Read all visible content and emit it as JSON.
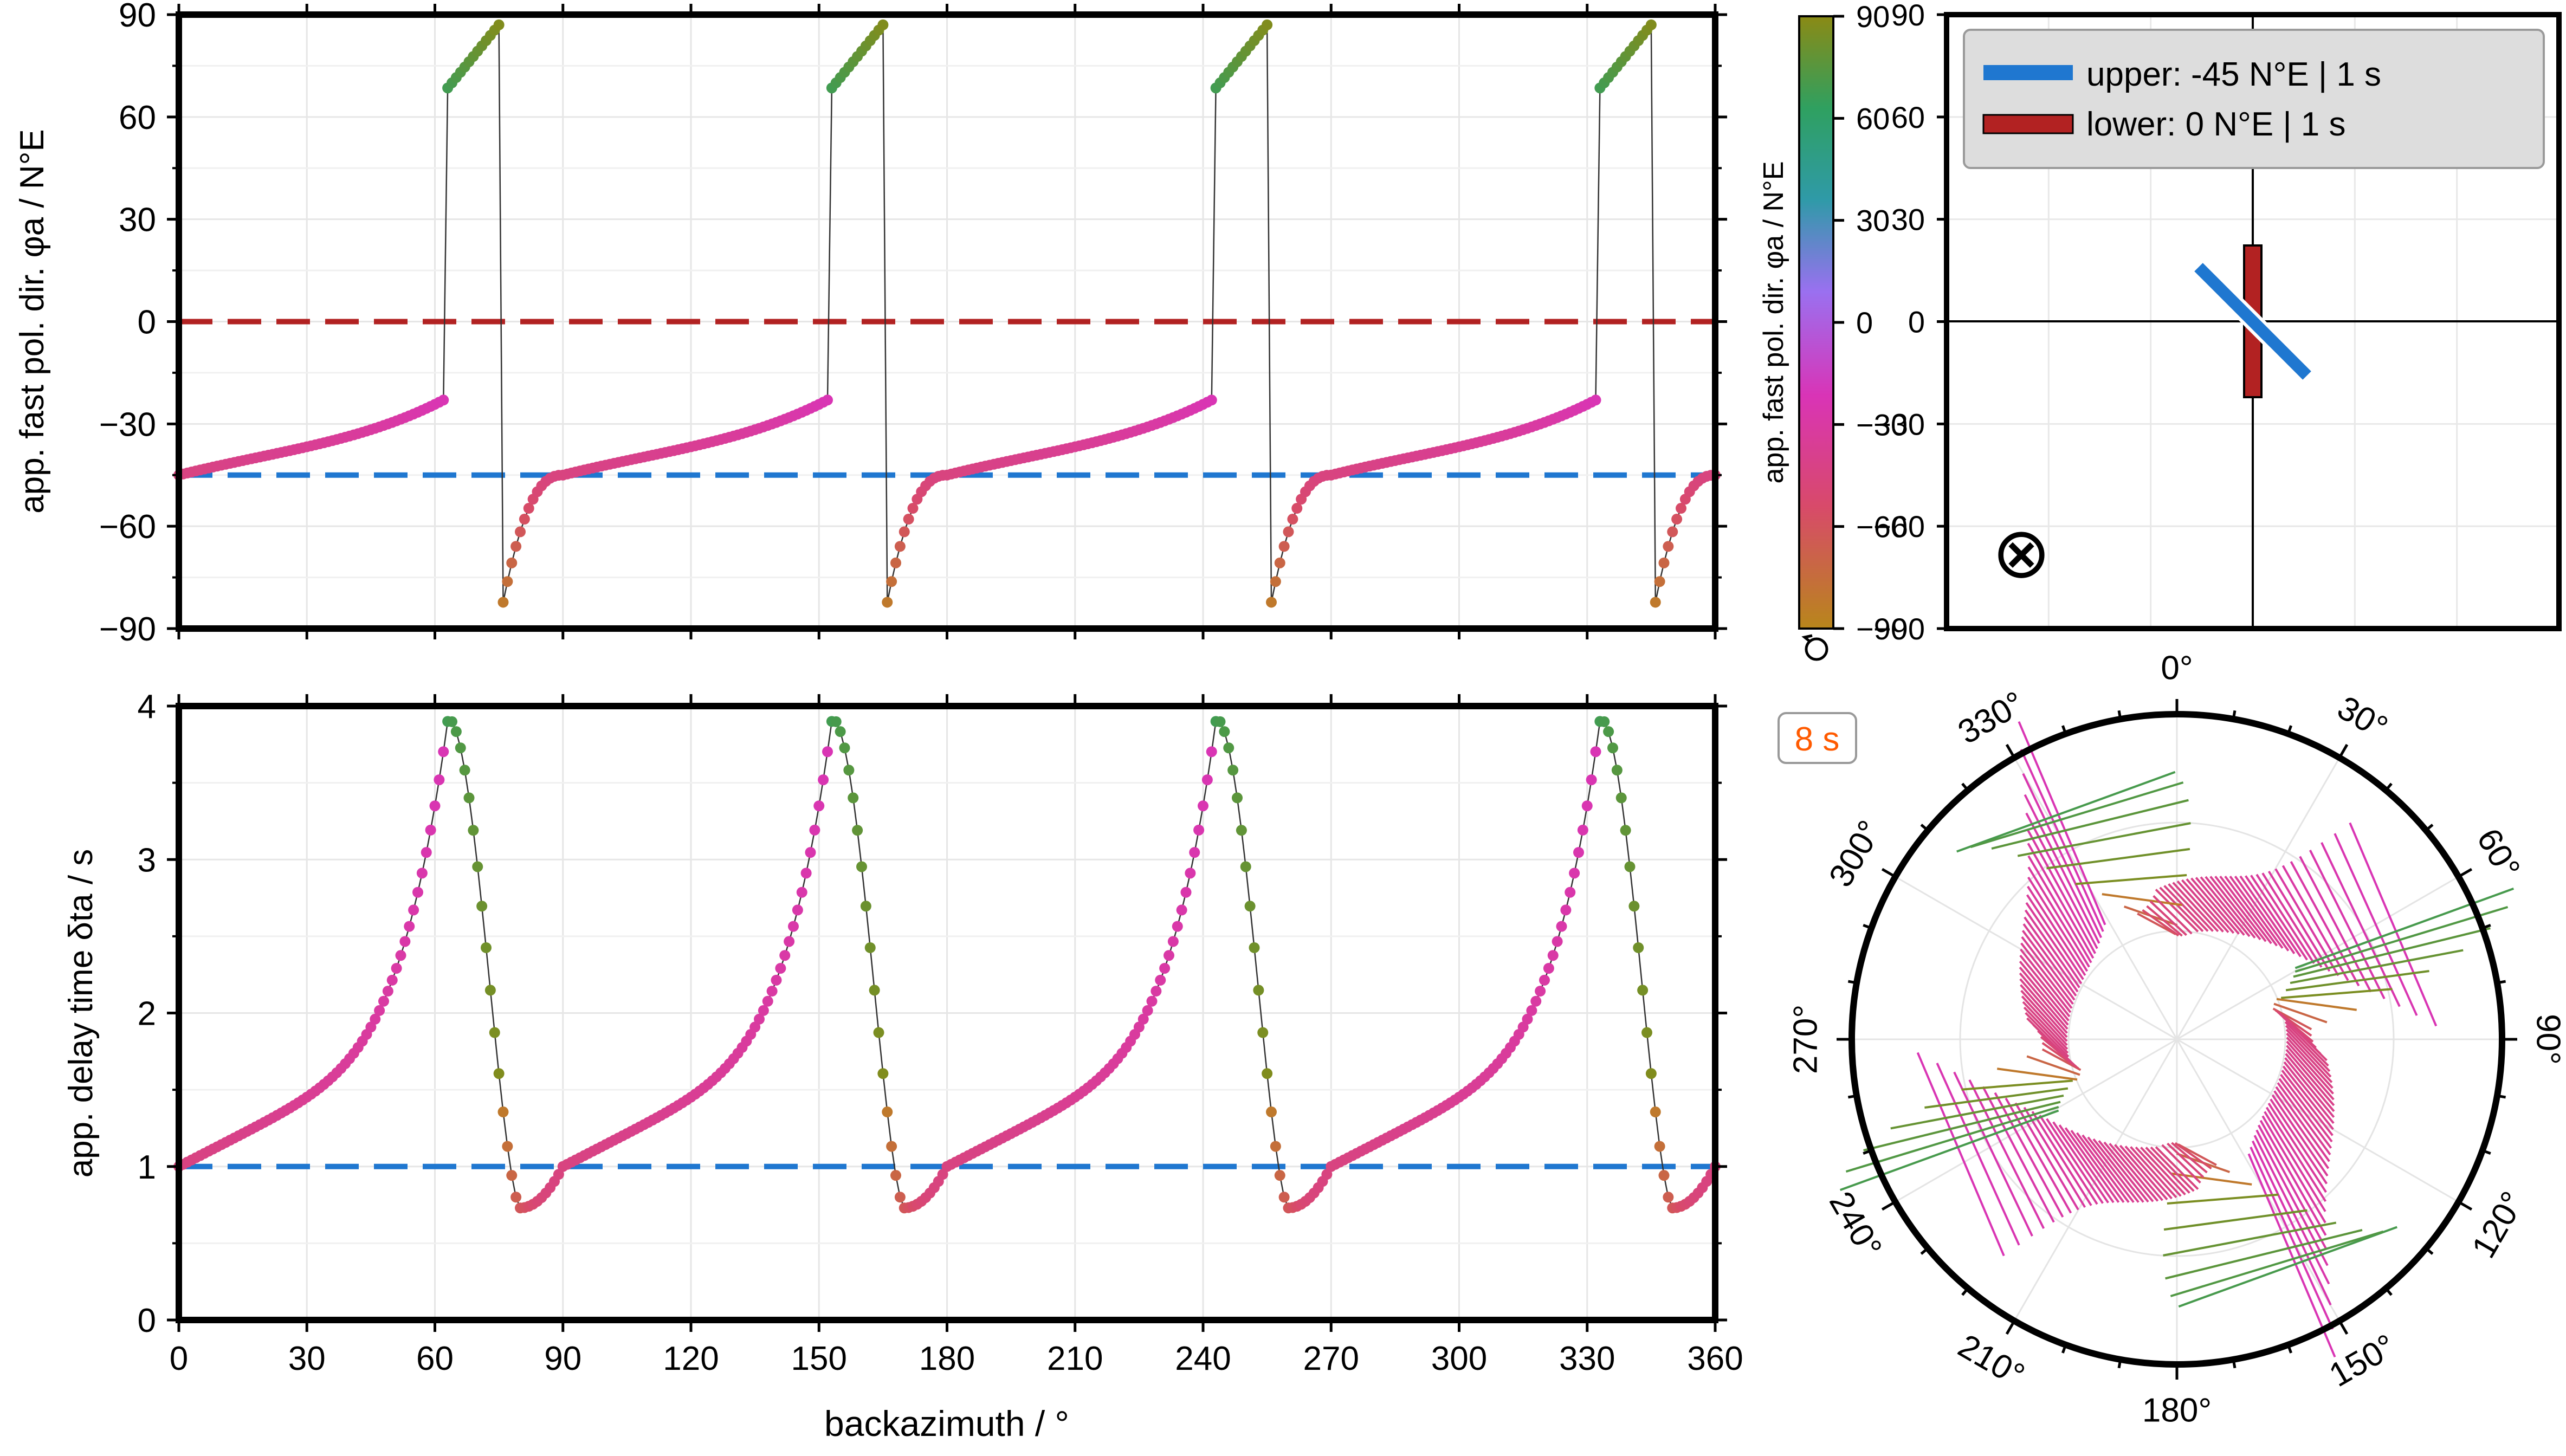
{
  "chart_data": [
    {
      "id": "phi",
      "type": "scatter",
      "ylabel": "app. fast pol. dir. φa / N°E",
      "xlim": [
        0,
        360
      ],
      "ylim": [
        -90,
        90
      ],
      "yticks": [
        -90,
        -60,
        -30,
        0,
        30,
        60,
        90
      ],
      "grid": true,
      "reference_lines": [
        {
          "layer": "upper",
          "value": -45,
          "color": "#1f77d0"
        },
        {
          "layer": "lower",
          "value": 0,
          "color": "#b22222"
        }
      ],
      "model": {
        "upper_phi": -45,
        "upper_dt": 1,
        "lower_phi": 0,
        "lower_dt": 1,
        "period_s": 8,
        "periodicity_deg": 90,
        "step_deg": 1
      }
    },
    {
      "id": "dt",
      "type": "scatter",
      "xlabel": "backazimuth / °",
      "ylabel": "app. delay time δta / s",
      "xlim": [
        0,
        360
      ],
      "ylim": [
        0,
        4
      ],
      "xticks": [
        0,
        30,
        60,
        90,
        120,
        150,
        180,
        210,
        240,
        270,
        300,
        330,
        360
      ],
      "yticks": [
        0,
        1,
        2,
        3,
        4
      ],
      "grid": true,
      "reference_lines": [
        {
          "layer": "upper",
          "value": 1,
          "color": "#1f77d0"
        }
      ]
    },
    {
      "id": "colorbar",
      "type": "colorbar",
      "label": "app. fast pol. dir. φa / N°E",
      "range": [
        -90,
        90
      ],
      "ticks": [
        -90,
        -60,
        -30,
        0,
        30,
        60,
        90
      ],
      "cyclic": true
    },
    {
      "id": "model",
      "type": "model",
      "ylim": [
        -90,
        90
      ],
      "yticks": [
        -90,
        -60,
        -30,
        0,
        30,
        60,
        90
      ],
      "legend": {
        "placement": "top",
        "entries": [
          {
            "label": "upper: -45 N°E | 1 s",
            "color": "#1f77d0"
          },
          {
            "label": "lower: 0 N°E | 1 s",
            "color": "#b22222"
          }
        ]
      },
      "symbol": "⊗"
    },
    {
      "id": "polar",
      "type": "polar",
      "badge": "8 s",
      "badge_color": "#ff5a00",
      "angle_labels": [
        "0°",
        "30°",
        "60°",
        "90°",
        "120°",
        "150°",
        "180°",
        "210°",
        "240°",
        "270°",
        "300°",
        "330°"
      ]
    }
  ]
}
